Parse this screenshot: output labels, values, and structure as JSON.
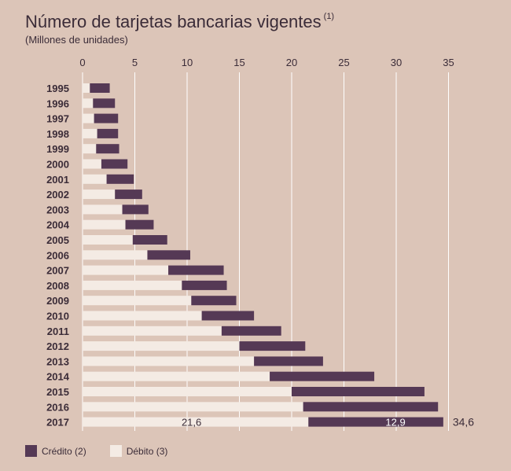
{
  "title": "Número de tarjetas bancarias vigentes",
  "title_note": "(1)",
  "subtitle": "(Millones de unidades)",
  "colors": {
    "credito": "#553955",
    "debito": "#f4ebe4",
    "grid": "#ffffff",
    "background": "#dcc5b8"
  },
  "legend": {
    "credito": "Crédito (2)",
    "debito": "Débito (3)"
  },
  "chart_data": {
    "type": "bar",
    "orientation": "horizontal",
    "stacked": true,
    "xlim": [
      0,
      35
    ],
    "xticks": [
      "0",
      "5",
      "10",
      "15",
      "20",
      "25",
      "30",
      "35"
    ],
    "categories": [
      "1995",
      "1996",
      "1997",
      "1998",
      "1999",
      "2000",
      "2001",
      "2002",
      "2003",
      "2004",
      "2005",
      "2006",
      "2007",
      "2008",
      "2009",
      "2010",
      "2011",
      "2012",
      "2013",
      "2014",
      "2015",
      "2016",
      "2017"
    ],
    "series": [
      {
        "name": "Débito (3)",
        "values": [
          0.7,
          1.0,
          1.1,
          1.4,
          1.3,
          1.8,
          2.3,
          3.1,
          3.8,
          4.1,
          4.8,
          6.2,
          8.2,
          9.5,
          10.4,
          11.4,
          13.3,
          15.0,
          16.4,
          17.9,
          20.0,
          21.1,
          21.6
        ]
      },
      {
        "name": "Crédito (2)",
        "values": [
          1.9,
          2.1,
          2.3,
          2.0,
          2.2,
          2.5,
          2.6,
          2.6,
          2.5,
          2.7,
          3.3,
          4.1,
          5.3,
          4.3,
          4.3,
          5.0,
          5.7,
          6.3,
          6.6,
          10.0,
          12.7,
          12.9,
          12.9
        ]
      }
    ],
    "annotations": {
      "debito_2017": "21,6",
      "credito_2017": "12,9",
      "total_2017": "34,6"
    },
    "legend_position": "bottom-left"
  }
}
